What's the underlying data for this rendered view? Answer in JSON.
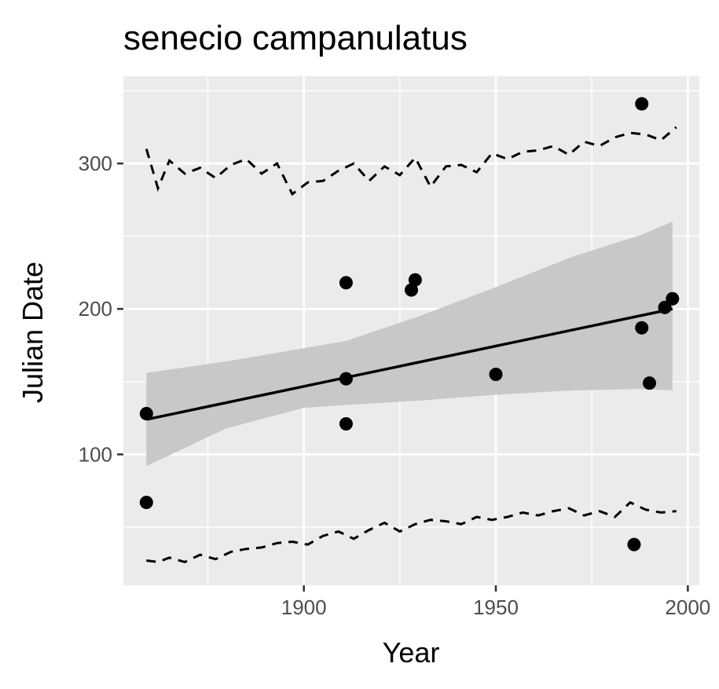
{
  "chart_data": {
    "type": "scatter",
    "title": "senecio campanulatus",
    "xlabel": "Year",
    "ylabel": "Julian Date",
    "xlim": [
      1853,
      2003
    ],
    "ylim": [
      10,
      360
    ],
    "x_major_ticks": [
      1900,
      1950,
      2000
    ],
    "x_minor_ticks": [
      1875,
      1925,
      1975
    ],
    "y_major_ticks": [
      100,
      200,
      300
    ],
    "y_minor_ticks": [
      50,
      150,
      250,
      350
    ],
    "x_tick_labels": [
      "1900",
      "1950",
      "2000"
    ],
    "y_tick_labels": [
      "100",
      "200",
      "300"
    ],
    "grid": true,
    "legend": "none",
    "colors": {
      "panel": "#ebebeb",
      "grid": "#ffffff",
      "points": "#000000",
      "ribbon": "#c8c8c8",
      "trend": "#000000",
      "bounds": "#000000",
      "tick_text": "#4d4d4d"
    },
    "points": [
      {
        "x": 1859,
        "y": 128
      },
      {
        "x": 1859,
        "y": 67
      },
      {
        "x": 1911,
        "y": 218
      },
      {
        "x": 1911,
        "y": 152
      },
      {
        "x": 1911,
        "y": 121
      },
      {
        "x": 1928,
        "y": 213
      },
      {
        "x": 1929,
        "y": 220
      },
      {
        "x": 1950,
        "y": 155
      },
      {
        "x": 1986,
        "y": 38
      },
      {
        "x": 1988,
        "y": 341
      },
      {
        "x": 1988,
        "y": 187
      },
      {
        "x": 1990,
        "y": 149
      },
      {
        "x": 1994,
        "y": 201
      },
      {
        "x": 1996,
        "y": 207
      }
    ],
    "trend_line": {
      "x": [
        1859,
        1996
      ],
      "y": [
        124,
        200
      ]
    },
    "confidence_band": {
      "x": [
        1859,
        1880,
        1900,
        1911,
        1930,
        1950,
        1970,
        1988,
        1996
      ],
      "lower": [
        92,
        118,
        132,
        134,
        137,
        141,
        144,
        145,
        144
      ],
      "upper": [
        156,
        164,
        173,
        178,
        195,
        215,
        236,
        251,
        260
      ]
    },
    "upper_bound": {
      "x": [
        1859,
        1862,
        1865,
        1869,
        1873,
        1877,
        1881,
        1885,
        1889,
        1893,
        1897,
        1901,
        1905,
        1909,
        1913,
        1917,
        1921,
        1925,
        1929,
        1933,
        1937,
        1941,
        1945,
        1949,
        1953,
        1957,
        1961,
        1965,
        1969,
        1973,
        1977,
        1981,
        1985,
        1989,
        1993,
        1997
      ],
      "y": [
        310,
        283,
        302,
        293,
        297,
        290,
        299,
        303,
        293,
        300,
        279,
        287,
        288,
        295,
        300,
        288,
        298,
        292,
        304,
        284,
        298,
        299,
        294,
        307,
        303,
        308,
        309,
        312,
        306,
        315,
        312,
        318,
        321,
        320,
        316,
        325
      ]
    },
    "lower_bound": {
      "x": [
        1859,
        1862,
        1865,
        1869,
        1873,
        1877,
        1881,
        1885,
        1889,
        1893,
        1897,
        1901,
        1905,
        1909,
        1913,
        1917,
        1921,
        1925,
        1929,
        1933,
        1937,
        1941,
        1945,
        1949,
        1953,
        1957,
        1961,
        1965,
        1969,
        1973,
        1977,
        1981,
        1985,
        1989,
        1993,
        1997
      ],
      "y": [
        27,
        26,
        29,
        26,
        31,
        28,
        33,
        35,
        36,
        39,
        40,
        38,
        44,
        47,
        42,
        48,
        53,
        47,
        52,
        55,
        54,
        52,
        57,
        55,
        57,
        60,
        58,
        61,
        63,
        58,
        61,
        57,
        67,
        62,
        60,
        61
      ]
    }
  }
}
